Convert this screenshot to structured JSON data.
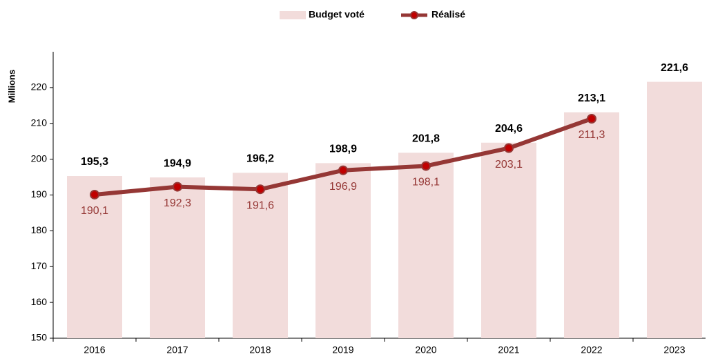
{
  "chart_data": {
    "type": "bar_line",
    "y_label": "Millions",
    "categories": [
      "2016",
      "2017",
      "2018",
      "2019",
      "2020",
      "2021",
      "2022",
      "2023"
    ],
    "series": [
      {
        "name": "Budget voté",
        "type": "bar",
        "color": "#f2dcdb",
        "values": [
          195.3,
          194.9,
          196.2,
          198.9,
          201.8,
          204.6,
          213.1,
          221.6
        ],
        "value_labels": [
          "195,3",
          "194,9",
          "196,2",
          "198,9",
          "201,8",
          "204,6",
          "213,1",
          "221,6"
        ]
      },
      {
        "name": "Réalisé",
        "type": "line",
        "color": "#953735",
        "values": [
          190.1,
          192.3,
          191.6,
          196.9,
          198.1,
          203.1,
          211.3,
          null
        ],
        "value_labels": [
          "190,1",
          "192,3",
          "191,6",
          "196,9",
          "198,1",
          "203,1",
          "211,3",
          null
        ]
      }
    ],
    "ylim": [
      150,
      230
    ],
    "yticks": [
      150,
      160,
      170,
      180,
      190,
      200,
      210,
      220
    ],
    "legend": "top"
  }
}
